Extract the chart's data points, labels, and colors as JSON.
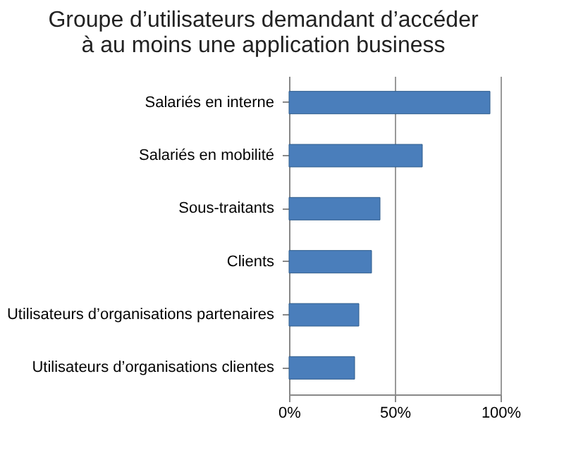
{
  "chart_data": {
    "type": "bar",
    "orientation": "horizontal",
    "title": "Groupe d’utilisateurs demandant d’accéder\nà au moins une application business",
    "categories": [
      "Salariés en interne",
      "Salariés en mobilité",
      "Sous-traitants",
      "Clients",
      "Utilisateurs d’organisations partenaires",
      "Utilisateurs d’organisations clientes"
    ],
    "values": [
      95,
      63,
      43,
      39,
      33,
      31
    ],
    "color": "#4a7ebb",
    "xlim": [
      0,
      100
    ],
    "xticks": [
      {
        "value": 0,
        "label": "0%"
      },
      {
        "value": 50,
        "label": "50%"
      },
      {
        "value": 100,
        "label": "100%"
      }
    ],
    "grid": "x"
  }
}
